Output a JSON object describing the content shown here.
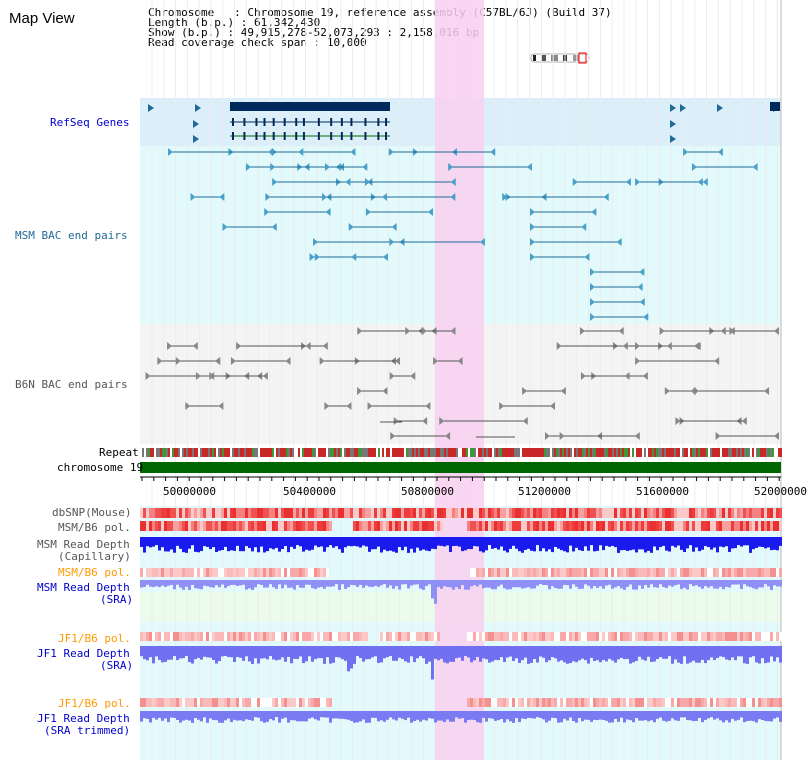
{
  "title": "Map View",
  "info": {
    "chromosome_key": "Chromosome",
    "chromosome_val": "Chromosome 19, reference assembly (C57BL/6J) (Build 37)",
    "length_key": "Length (b.p.)",
    "length_val": "61,342,430",
    "show_key": "Show (b.p.)",
    "show_val": "49,915,278-52,073,293 : 2,158,016 bp",
    "span_key": "Read coverage check span",
    "span_val": "10,000"
  },
  "tracks": {
    "refseq": {
      "label": "RefSeq Genes",
      "color": "#0000cc"
    },
    "msm_bac": {
      "label": "MSM BAC end pairs",
      "color": "#1f6a96"
    },
    "b6n_bac": {
      "label": "B6N BAC end pairs",
      "color": "#555555"
    },
    "repeat": {
      "label": "Repeat",
      "color": "#000000"
    },
    "chromosome": {
      "label": "chromosome 19",
      "color": "#000000",
      "bar_color": "#006600"
    },
    "dbsnp": {
      "label": "dbSNP(Mouse)",
      "color": "#555555"
    },
    "msm_pol": {
      "label": "MSM/B6 pol.",
      "color": "#555555"
    },
    "msm_depth_cap_1": {
      "label": "MSM Read Depth",
      "color": "#555555"
    },
    "msm_depth_cap_2": {
      "label": "(Capillary)",
      "color": "#555555"
    },
    "msm_pol_sra": {
      "label": "MSM/B6 pol.",
      "color": "#ff9900"
    },
    "msm_depth_sra_1": {
      "label": "MSM Read Depth",
      "color": "#0000cc"
    },
    "msm_depth_sra_2": {
      "label": "(SRA)",
      "color": "#0000cc"
    },
    "jf1_pol": {
      "label": "JF1/B6 pol.",
      "color": "#ff9900"
    },
    "jf1_depth_1": {
      "label": "JF1 Read Depth",
      "color": "#0000cc"
    },
    "jf1_depth_2": {
      "label": "(SRA)",
      "color": "#0000cc"
    },
    "jf1_pol_trim": {
      "label": "JF1/B6 pol.",
      "color": "#ff9900"
    },
    "jf1_depth_trim_1": {
      "label": "JF1 Read Depth",
      "color": "#0000cc"
    },
    "jf1_depth_trim_2": {
      "label": "(SRA trimmed)",
      "color": "#0000cc"
    }
  },
  "axis_ticks": [
    "50000000",
    "50400000",
    "50800000",
    "51200000",
    "51600000",
    "52000000"
  ],
  "highlight_region": {
    "label": "",
    "color": "#f8d0f0"
  }
}
